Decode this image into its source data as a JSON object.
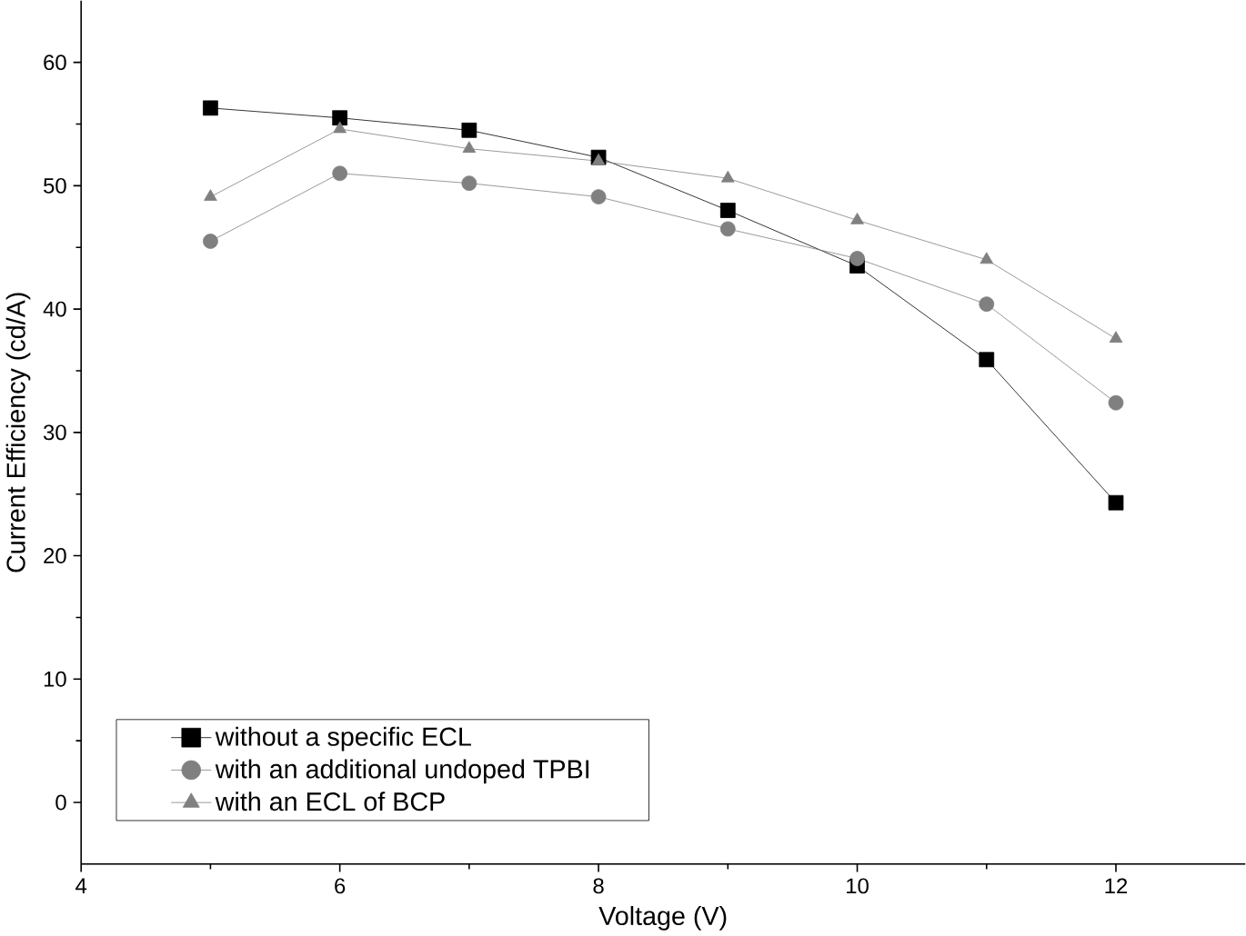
{
  "chart_data": {
    "type": "line",
    "xlabel": "Voltage (V)",
    "ylabel": "Current Efficiency (cd/A)",
    "x": [
      5,
      6,
      7,
      8,
      9,
      10,
      11,
      12
    ],
    "xlim": [
      4,
      13
    ],
    "ylim": [
      -5,
      65
    ],
    "xticks": [
      4,
      6,
      8,
      10,
      12
    ],
    "yticks": [
      0,
      10,
      20,
      30,
      40,
      50,
      60
    ],
    "legend": "bottom left",
    "line_style": "solid",
    "grid": false,
    "series": [
      {
        "name": "without a specific ECL",
        "color": "#000000",
        "marker": "square",
        "values": [
          56.3,
          55.5,
          54.5,
          52.3,
          48.0,
          43.5,
          35.9,
          24.3
        ]
      },
      {
        "name": "with an additional undoped TPBI",
        "color": "#808080",
        "marker": "circle",
        "values": [
          45.5,
          51.0,
          50.2,
          49.1,
          46.5,
          44.1,
          40.4,
          32.4
        ]
      },
      {
        "name": "with an ECL of BCP",
        "color": "#808080",
        "marker": "triangle",
        "values": [
          49.1,
          54.6,
          53.0,
          52.0,
          50.6,
          47.2,
          44.0,
          37.6
        ]
      }
    ]
  }
}
